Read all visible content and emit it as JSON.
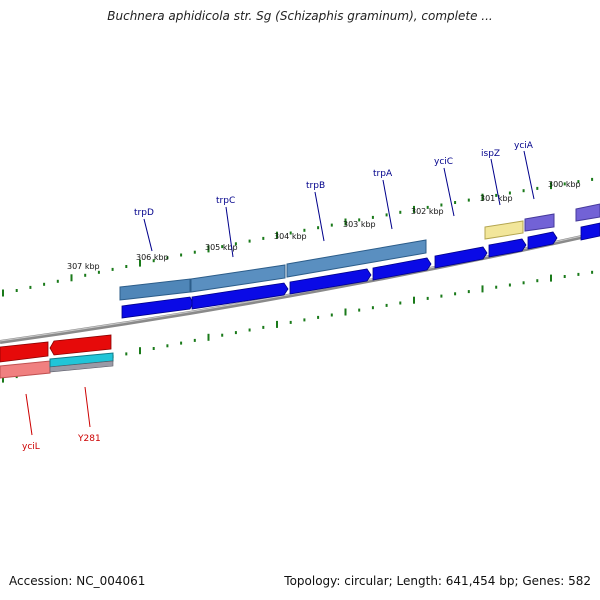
{
  "header": {
    "title": "Buchnera aphidicola str. Sg (Schizaphis graminum), complete ..."
  },
  "footer": {
    "accession": "Accession: NC_004061",
    "topology": "Topology: circular; Length: 641,454 bp; Genes: 582"
  },
  "colors": {
    "forward_gene": "#0a0ae6",
    "reverse_gene": "#e60a0a",
    "forward_label": "#00008b",
    "reverse_label": "#cc0000",
    "operon_band": "#4f86b8",
    "reverse_band": "#f08080",
    "yellow_band": "#f2e69a",
    "purple_band": "#6a5acd",
    "cyan_band": "#20c5d8",
    "tick": "#1a7a1a",
    "backbone": "#888888"
  },
  "kbp_labels": [
    "307 kbp",
    "306 kbp",
    "305 kbp",
    "304 kbp",
    "303 kbp",
    "302 kbp",
    "301 kbp",
    "300 kbp"
  ],
  "forward_genes": [
    {
      "name": "trpD"
    },
    {
      "name": "trpC"
    },
    {
      "name": "trpB"
    },
    {
      "name": "trpA"
    },
    {
      "name": "yciC"
    },
    {
      "name": "ispZ"
    },
    {
      "name": "yciA"
    }
  ],
  "reverse_genes": [
    {
      "name": "yciL"
    },
    {
      "name": "Y281"
    }
  ]
}
